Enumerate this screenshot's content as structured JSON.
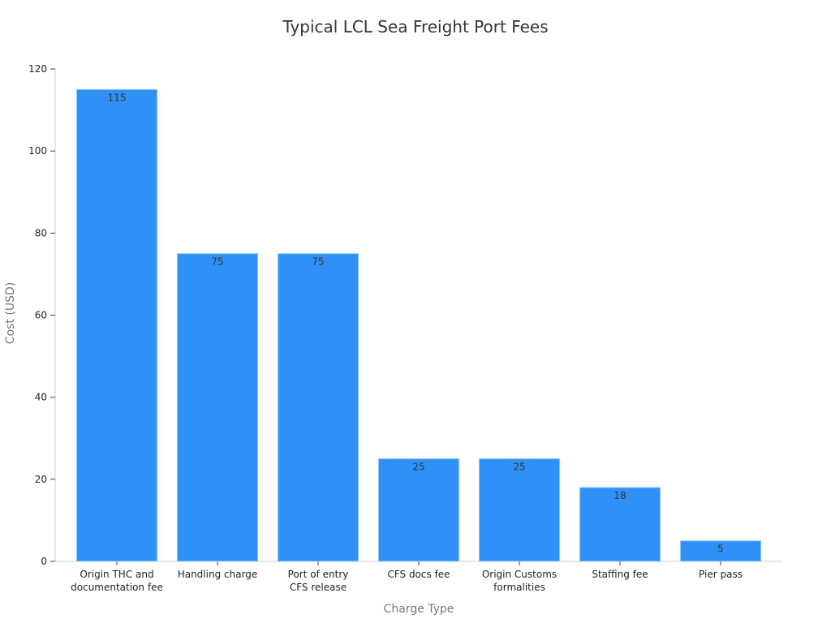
{
  "chart_data": {
    "type": "bar",
    "title": "Typical LCL Sea Freight Port Fees",
    "xlabel": "Charge Type",
    "ylabel": "Cost (USD)",
    "ylim": [
      0,
      120
    ],
    "yticks": [
      0,
      20,
      40,
      60,
      80,
      100,
      120
    ],
    "categories": [
      "Origin THC and documentation fee",
      "Handling charge",
      "Port of entry CFS release",
      "CFS docs fee",
      "Origin Customs formalities",
      "Staffing fee",
      "Pier pass"
    ],
    "category_lines": [
      [
        "Origin THC and",
        "documentation fee"
      ],
      [
        "Handling charge"
      ],
      [
        "Port of entry",
        "CFS release"
      ],
      [
        "CFS docs fee"
      ],
      [
        "Origin Customs",
        "formalities"
      ],
      [
        "Staffing fee"
      ],
      [
        "Pier pass"
      ]
    ],
    "values": [
      115,
      75,
      75,
      25,
      25,
      18,
      5
    ],
    "data_labels": [
      "115",
      "75",
      "75",
      "25",
      "25",
      "18",
      "5"
    ],
    "bar_color": "#2f91f7",
    "grid": false,
    "legend": "none"
  }
}
